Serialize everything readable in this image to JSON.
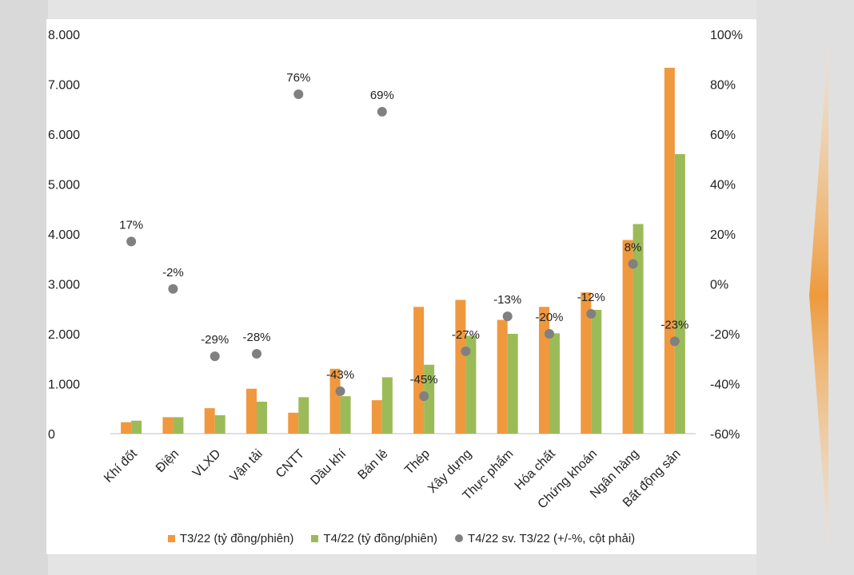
{
  "chart_data": {
    "type": "bar",
    "categories": [
      "Khí đốt",
      "Điện",
      "VLXD",
      "Vận tải",
      "CNTT",
      "Dầu khí",
      "Bán lẻ",
      "Thép",
      "Xây dựng",
      "Thực phẩm",
      "Hóa chất",
      "Chứng khoán",
      "Ngân hàng",
      "Bất động sản"
    ],
    "series": [
      {
        "name": "T3/22 (tỷ đồng/phiên)",
        "axis": "left",
        "kind": "bar",
        "color": "#f0983e",
        "values": [
          230,
          330,
          510,
          900,
          420,
          1300,
          670,
          2540,
          2680,
          2280,
          2540,
          2830,
          3880,
          7330
        ]
      },
      {
        "name": "T4/22 (tỷ đồng/phiên)",
        "axis": "left",
        "kind": "bar",
        "color": "#9bbb59",
        "values": [
          260,
          330,
          370,
          640,
          730,
          750,
          1130,
          1380,
          1960,
          2000,
          2010,
          2480,
          4200,
          5600
        ]
      },
      {
        "name": "T4/22 sv. T3/22 (+/-%, cột phải)",
        "axis": "right",
        "kind": "scatter",
        "color": "#808080",
        "values": [
          17,
          -2,
          -29,
          -28,
          76,
          -43,
          69,
          -45,
          -27,
          -13,
          -20,
          -12,
          8,
          -23
        ],
        "labels": [
          "17%",
          "-2%",
          "-29%",
          "-28%",
          "76%",
          "-43%",
          "69%",
          "-45%",
          "-27%",
          "-13%",
          "-20%",
          "-12%",
          "8%",
          "-23%"
        ]
      }
    ],
    "ylim": [
      0,
      8000
    ],
    "y_ticks": [
      "0",
      "1.000",
      "2.000",
      "3.000",
      "4.000",
      "5.000",
      "6.000",
      "7.000",
      "8.000"
    ],
    "y2lim": [
      -60,
      100
    ],
    "y2_ticks": [
      "-60%",
      "-40%",
      "-20%",
      "0%",
      "20%",
      "40%",
      "60%",
      "80%",
      "100%"
    ],
    "title": "",
    "xlabel": "",
    "ylabel": "",
    "grid": false,
    "legend_position": "bottom"
  }
}
